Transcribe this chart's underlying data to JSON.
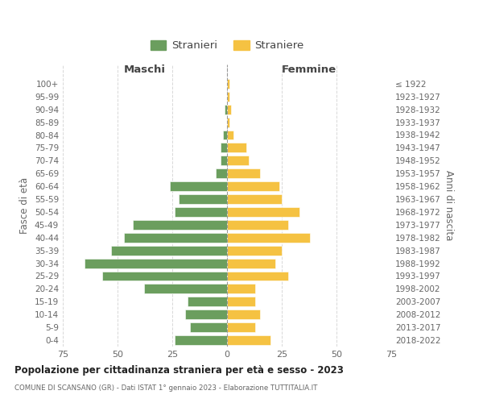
{
  "age_groups": [
    "0-4",
    "5-9",
    "10-14",
    "15-19",
    "20-24",
    "25-29",
    "30-34",
    "35-39",
    "40-44",
    "45-49",
    "50-54",
    "55-59",
    "60-64",
    "65-69",
    "70-74",
    "75-79",
    "80-84",
    "85-89",
    "90-94",
    "95-99",
    "100+"
  ],
  "birth_years": [
    "2018-2022",
    "2013-2017",
    "2008-2012",
    "2003-2007",
    "1998-2002",
    "1993-1997",
    "1988-1992",
    "1983-1987",
    "1978-1982",
    "1973-1977",
    "1968-1972",
    "1963-1967",
    "1958-1962",
    "1953-1957",
    "1948-1952",
    "1943-1947",
    "1938-1942",
    "1933-1937",
    "1928-1932",
    "1923-1927",
    "≤ 1922"
  ],
  "maschi": [
    24,
    17,
    19,
    18,
    38,
    57,
    65,
    53,
    47,
    43,
    24,
    22,
    26,
    5,
    3,
    3,
    2,
    0,
    1,
    0,
    0
  ],
  "femmine": [
    20,
    13,
    15,
    13,
    13,
    28,
    22,
    25,
    38,
    28,
    33,
    25,
    24,
    15,
    10,
    9,
    3,
    1,
    2,
    1,
    1
  ],
  "color_maschi": "#6b9e5e",
  "color_femmine": "#f5c242",
  "title_main": "Popolazione per cittadinanza straniera per età e sesso - 2023",
  "title_sub": "COMUNE DI SCANSANO (GR) - Dati ISTAT 1° gennaio 2023 - Elaborazione TUTTITALIA.IT",
  "label_maschi": "Maschi",
  "label_femmine": "Femmine",
  "legend_stranieri": "Stranieri",
  "legend_straniere": "Straniere",
  "ylabel_left": "Fasce di età",
  "ylabel_right": "Anni di nascita",
  "xlim": 75,
  "background_color": "#ffffff",
  "grid_color": "#d8d8d8"
}
